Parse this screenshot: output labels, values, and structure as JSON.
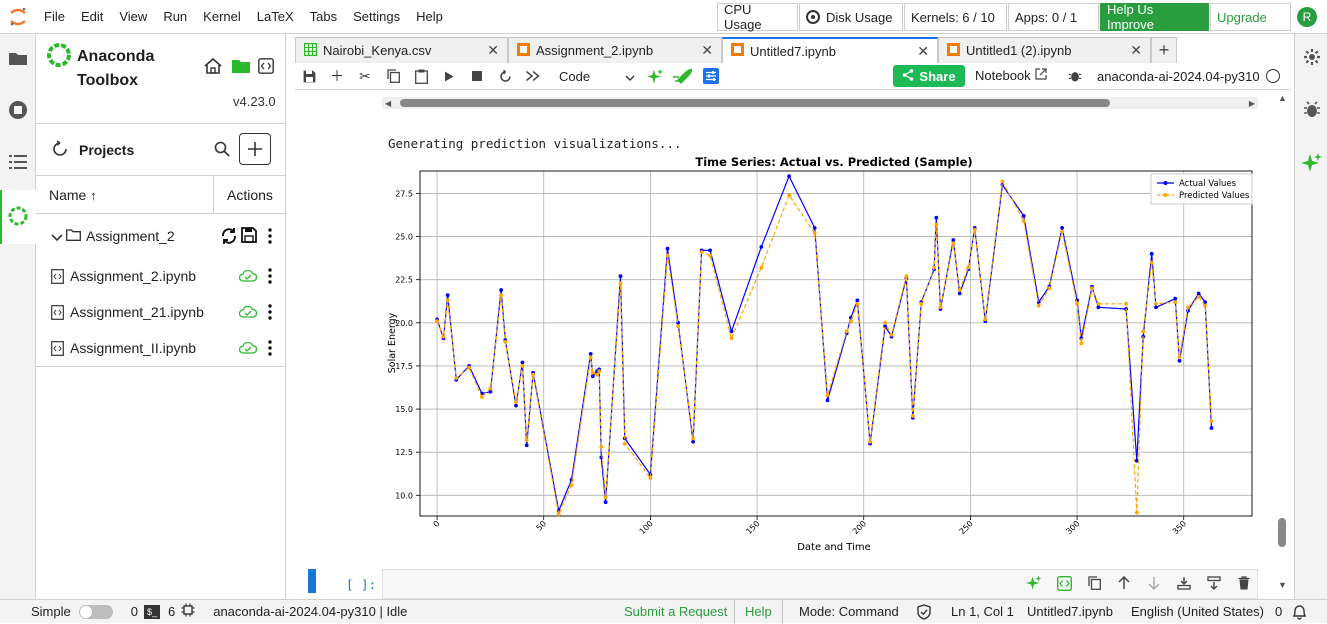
{
  "menubar": {
    "items": [
      "File",
      "Edit",
      "View",
      "Run",
      "Kernel",
      "LaTeX",
      "Tabs",
      "Settings",
      "Help"
    ],
    "cpu": "CPU Usage",
    "disk": "Disk Usage",
    "kernels": "Kernels: 6 / 10",
    "apps": "Apps: 0 / 1",
    "help_improve": "Help Us Improve",
    "upgrade": "Upgrade",
    "avatar": "R"
  },
  "toolbox": {
    "title_line1": "Anaconda",
    "title_line2": "Toolbox",
    "version": "v4.23.0",
    "projects_label": "Projects",
    "col_name": "Name",
    "col_actions": "Actions",
    "folder": "Assignment_2",
    "files": [
      "Assignment_2.ipynb",
      "Assignment_21.ipynb",
      "Assignment_II.ipynb"
    ]
  },
  "tabs": [
    {
      "label": "Nairobi_Kenya.csv",
      "icon": "table-icon"
    },
    {
      "label": "Assignment_2.ipynb",
      "icon": "notebook-icon"
    },
    {
      "label": "Untitled7.ipynb",
      "icon": "notebook-icon"
    },
    {
      "label": "Untitled1 (2).ipynb",
      "icon": "notebook-icon"
    }
  ],
  "nbtoolbar": {
    "cell_type": "Code",
    "share": "Share",
    "notebook": "Notebook",
    "kernel_name": "anaconda-ai-2024.04-py310"
  },
  "output": {
    "text": "Generating prediction visualizations...",
    "prompt": "[ ]:"
  },
  "chart_data": {
    "type": "line",
    "title": "Time Series: Actual vs. Predicted (Sample)",
    "xlabel": "Date and Time",
    "ylabel": "Solar Energy",
    "xlim": [
      -8,
      382
    ],
    "ylim": [
      8.8,
      28.8
    ],
    "xticks": [
      0,
      50,
      100,
      150,
      200,
      250,
      300,
      350
    ],
    "yticks": [
      10.0,
      12.5,
      15.0,
      17.5,
      20.0,
      22.5,
      25.0,
      27.5
    ],
    "grid": true,
    "legend_position": "top-right",
    "series": [
      {
        "name": "Actual Values",
        "color": "#0000ff",
        "style": "solid-marker",
        "x": [
          0,
          3,
          5,
          9,
          15,
          21,
          25,
          30,
          32,
          37,
          40,
          42,
          45,
          57,
          63,
          72,
          73,
          75,
          76,
          77,
          79,
          86,
          88,
          100,
          108,
          113,
          120,
          124,
          128,
          138,
          152,
          165,
          177,
          183,
          192,
          194,
          197,
          203,
          210,
          213,
          220,
          223,
          227,
          233,
          234,
          236,
          242,
          245,
          249,
          252,
          257,
          265,
          275,
          282,
          287,
          293,
          300,
          302,
          307,
          310,
          323,
          328,
          331,
          335,
          337,
          346,
          348,
          352,
          357,
          360,
          363
        ],
        "y": [
          20.2,
          19.1,
          21.6,
          16.7,
          17.5,
          15.9,
          16.0,
          21.9,
          19.0,
          15.2,
          17.7,
          12.9,
          17.1,
          9.1,
          10.9,
          18.2,
          16.9,
          17.2,
          17.3,
          12.2,
          9.6,
          22.7,
          13.3,
          11.2,
          24.3,
          20.0,
          13.1,
          24.2,
          24.2,
          19.5,
          24.4,
          28.5,
          25.5,
          15.5,
          19.4,
          20.3,
          21.3,
          13.0,
          19.8,
          19.2,
          22.6,
          14.5,
          21.2,
          23.1,
          26.1,
          20.8,
          24.8,
          21.7,
          23.1,
          25.5,
          20.1,
          28.0,
          26.2,
          21.2,
          22.1,
          25.5,
          21.3,
          19.1,
          22.1,
          20.9,
          20.8,
          12.0,
          19.2,
          24.0,
          20.9,
          21.4,
          17.8,
          20.7,
          21.7,
          21.2,
          13.9
        ]
      },
      {
        "name": "Predicted Values",
        "color": "#ffa500",
        "style": "dashed-marker",
        "x": [
          0,
          3,
          5,
          9,
          15,
          21,
          25,
          30,
          32,
          37,
          40,
          42,
          45,
          57,
          63,
          72,
          73,
          75,
          76,
          77,
          79,
          86,
          88,
          100,
          108,
          113,
          120,
          124,
          128,
          138,
          152,
          165,
          177,
          183,
          192,
          194,
          197,
          203,
          210,
          213,
          220,
          223,
          227,
          233,
          234,
          236,
          242,
          245,
          249,
          252,
          257,
          265,
          275,
          282,
          287,
          293,
          300,
          302,
          307,
          310,
          323,
          328,
          331,
          335,
          337,
          346,
          348,
          352,
          357,
          360,
          363
        ],
        "y": [
          20.1,
          19.2,
          21.3,
          16.8,
          17.4,
          15.7,
          16.2,
          21.6,
          18.9,
          15.4,
          17.5,
          13.2,
          17.0,
          8.9,
          10.6,
          18.0,
          17.1,
          17.0,
          17.2,
          12.8,
          9.9,
          22.3,
          13.0,
          11.0,
          23.9,
          19.8,
          13.3,
          24.1,
          23.9,
          19.1,
          23.2,
          27.4,
          25.2,
          15.8,
          19.5,
          20.1,
          21.1,
          13.1,
          20.0,
          19.3,
          22.7,
          14.6,
          21.1,
          23.2,
          25.7,
          20.9,
          24.6,
          21.9,
          23.2,
          25.4,
          20.2,
          28.2,
          25.9,
          21.0,
          22.0,
          25.3,
          21.1,
          18.8,
          22.0,
          21.1,
          21.1,
          9.0,
          19.5,
          23.5,
          21.1,
          21.2,
          18.0,
          20.9,
          21.5,
          21.0,
          14.3
        ]
      }
    ]
  },
  "statusbar": {
    "mode_simple": "Simple",
    "zero1": "0",
    "six": "6",
    "kernel_status": "anaconda-ai-2024.04-py310 | Idle",
    "submit": "Submit a Request",
    "help": "Help",
    "mode": "Mode: Command",
    "position": "Ln 1, Col 1",
    "filename": "Untitled7.ipynb",
    "language": "English (United States)",
    "notifications": "0"
  },
  "colors": {
    "accent_green": "#2eb82e",
    "share_green": "#1db954",
    "help_green_bg": "#2a9d3f",
    "active_tab": "#1a73e8",
    "orange_notebook": "#f57c00"
  }
}
